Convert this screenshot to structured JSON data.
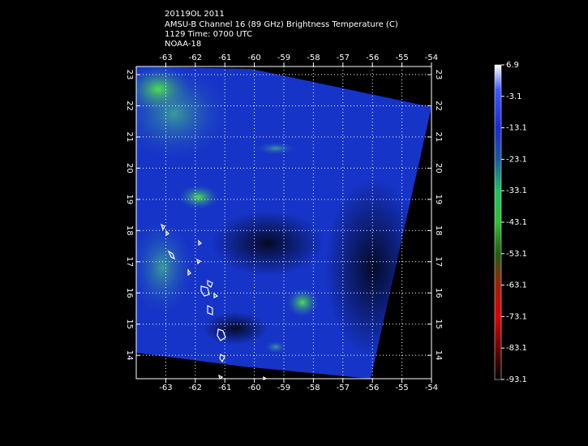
{
  "header": {
    "lines": [
      "20119OL 2011",
      "AMSU-B Channel 16 (89 GHz) Brightness Temperature (C)",
      "1129 Time: 0700 UTC",
      "NOAA-18"
    ]
  },
  "map": {
    "xlim": [
      -64,
      -54
    ],
    "xticks": [
      -63,
      -62,
      -61,
      -60,
      -59,
      -58,
      -57,
      -56,
      -55,
      -54
    ],
    "ylim": [
      13.25,
      23.26
    ],
    "yticks": [
      14,
      15,
      16,
      17,
      18,
      19,
      20,
      21,
      22,
      23
    ]
  },
  "colorbar": {
    "lim": [
      -93.1,
      6.9
    ],
    "ticks": [
      6.9,
      -3.1,
      -13.1,
      -23.1,
      -33.1,
      -43.1,
      -53.1,
      -63.1,
      -73.1,
      -83.1,
      -93.1
    ]
  }
}
